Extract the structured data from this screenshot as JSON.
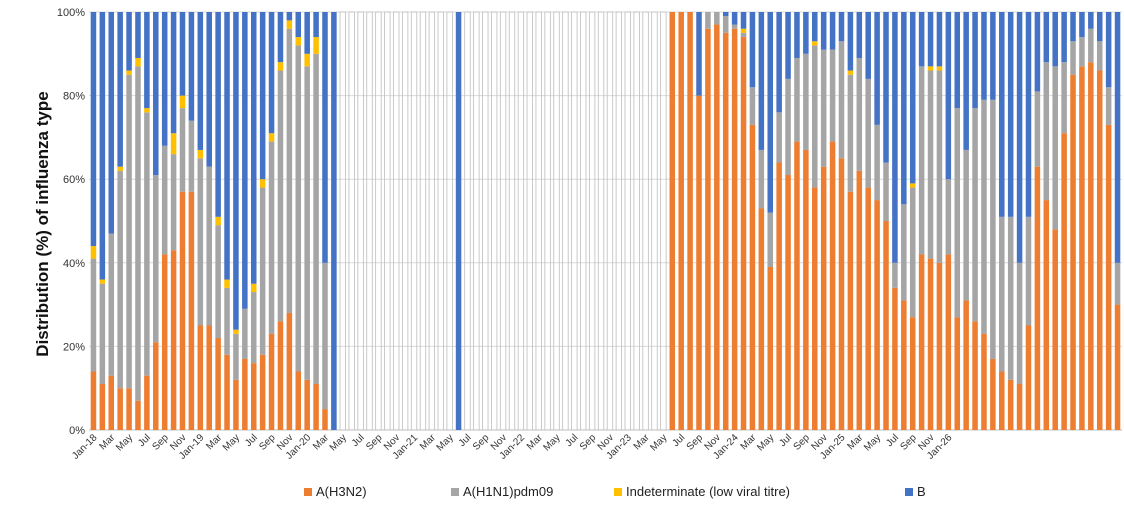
{
  "chart_data": {
    "type": "bar",
    "stacked": true,
    "ylabel": "Distribution (%) of influenza  type",
    "ylim": [
      0,
      100
    ],
    "y_ticks": [
      "0%",
      "20%",
      "40%",
      "60%",
      "80%",
      "100%"
    ],
    "grid": true,
    "legend_position": "bottom",
    "x_tick_labels": [
      "Jan-18",
      "Mar",
      "May",
      "Jul",
      "Sep",
      "Nov",
      "Jan-19",
      "Mar",
      "May",
      "Jul",
      "Sep",
      "Nov",
      "Jan-20",
      "Mar",
      "May",
      "Jul",
      "Sep",
      "Nov",
      "Jan-21",
      "Mar",
      "May",
      "Jul",
      "Sep",
      "Nov",
      "Jan-22",
      "Mar",
      "May",
      "Jul",
      "Sep",
      "Nov",
      "Jan-23",
      "Mar",
      "May",
      "Jul",
      "Sep",
      "Nov",
      "Jan-24",
      "Mar",
      "May",
      "Jul",
      "Sep",
      "Nov",
      "Jan-25",
      "Mar",
      "May",
      "Jul",
      "Sep",
      "Nov",
      "Jan-26"
    ],
    "series": [
      {
        "name": "A(H3N2)",
        "color": "#ED7D31",
        "values": [
          14,
          11,
          13,
          10,
          10,
          7,
          13,
          21,
          42,
          43,
          57,
          57,
          25,
          25,
          22,
          18,
          12,
          17,
          16,
          18,
          23,
          26,
          28,
          14,
          12,
          11,
          5,
          0,
          0,
          0,
          0,
          0,
          0,
          0,
          0,
          0,
          0,
          0,
          0,
          0,
          0,
          0,
          0,
          0,
          0,
          0,
          0,
          0,
          0,
          0,
          0,
          0,
          0,
          0,
          0,
          0,
          0,
          0,
          0,
          0,
          0,
          0,
          0,
          0,
          0,
          100,
          100,
          100,
          80,
          96,
          97,
          95,
          96,
          94,
          73,
          53,
          39,
          64,
          61,
          69,
          67,
          58,
          63,
          69,
          65,
          57,
          62,
          58,
          55,
          50,
          34,
          31,
          27,
          42,
          41,
          40,
          42,
          27,
          31,
          26,
          23,
          17,
          14,
          12,
          11,
          25,
          63,
          55,
          48,
          71,
          85,
          87,
          88,
          86,
          73,
          30
        ]
      },
      {
        "name": "A(H1N1)pdm09",
        "color": "#A5A5A5",
        "values": [
          27,
          24,
          34,
          52,
          75,
          80,
          63,
          40,
          26,
          23,
          20,
          17,
          40,
          38,
          27,
          16,
          11,
          12,
          17,
          40,
          46,
          60,
          68,
          78,
          75,
          79,
          35,
          0,
          0,
          0,
          0,
          0,
          0,
          0,
          0,
          0,
          0,
          0,
          0,
          0,
          0,
          0,
          0,
          0,
          0,
          0,
          0,
          0,
          0,
          0,
          0,
          0,
          0,
          0,
          0,
          0,
          0,
          0,
          0,
          0,
          0,
          0,
          0,
          0,
          0,
          0,
          0,
          0,
          0,
          4,
          3,
          4,
          1,
          1,
          9,
          14,
          13,
          12,
          23,
          20,
          23,
          34,
          28,
          22,
          28,
          28,
          27,
          26,
          18,
          14,
          6,
          23,
          31,
          45,
          45,
          46,
          18,
          50,
          36,
          51,
          56,
          62,
          37,
          39,
          29,
          26,
          18,
          33,
          39,
          17,
          8,
          7,
          8,
          7,
          9,
          10
        ]
      },
      {
        "name": "Indeterminate (low viral titre)",
        "color": "#FFC000",
        "values": [
          3,
          1,
          0,
          1,
          1,
          2,
          1,
          0,
          0,
          5,
          3,
          0,
          2,
          0,
          2,
          2,
          1,
          0,
          2,
          2,
          2,
          2,
          2,
          2,
          3,
          4,
          0,
          0,
          0,
          0,
          0,
          0,
          0,
          0,
          0,
          0,
          0,
          0,
          0,
          0,
          0,
          0,
          0,
          0,
          0,
          0,
          0,
          0,
          0,
          0,
          0,
          0,
          0,
          0,
          0,
          0,
          0,
          0,
          0,
          0,
          0,
          0,
          0,
          0,
          0,
          0,
          0,
          0,
          0,
          0,
          0,
          0,
          0,
          1,
          0,
          0,
          0,
          0,
          0,
          0,
          0,
          1,
          0,
          0,
          0,
          1,
          0,
          0,
          0,
          0,
          0,
          0,
          1,
          0,
          1,
          1,
          0,
          0,
          0,
          0,
          0,
          0,
          0,
          0,
          0,
          0,
          0,
          0,
          0,
          0,
          0,
          0,
          0,
          0,
          0,
          0
        ]
      },
      {
        "name": "B",
        "color": "#4472C4",
        "values": [
          56,
          64,
          53,
          37,
          14,
          11,
          23,
          39,
          32,
          29,
          20,
          26,
          33,
          37,
          49,
          64,
          76,
          71,
          65,
          40,
          29,
          12,
          2,
          6,
          10,
          6,
          60,
          100,
          0,
          0,
          0,
          0,
          0,
          0,
          0,
          0,
          0,
          0,
          0,
          0,
          0,
          100,
          0,
          0,
          0,
          0,
          0,
          0,
          0,
          0,
          0,
          0,
          0,
          0,
          0,
          0,
          0,
          0,
          0,
          0,
          0,
          0,
          0,
          0,
          0,
          0,
          0,
          0,
          20,
          0,
          0,
          1,
          3,
          4,
          18,
          33,
          48,
          24,
          16,
          11,
          10,
          7,
          9,
          9,
          7,
          14,
          11,
          16,
          27,
          36,
          60,
          46,
          41,
          13,
          13,
          13,
          40,
          23,
          33,
          23,
          21,
          21,
          49,
          49,
          60,
          49,
          19,
          12,
          13,
          12,
          7,
          6,
          4,
          7,
          18,
          60
        ]
      }
    ]
  },
  "legend": [
    {
      "label": "A(H3N2)",
      "color": "#ED7D31"
    },
    {
      "label": "A(H1N1)pdm09",
      "color": "#A5A5A5"
    },
    {
      "label": "Indeterminate (low viral titre)",
      "color": "#FFC000"
    },
    {
      "label": "B",
      "color": "#4472C4"
    }
  ]
}
